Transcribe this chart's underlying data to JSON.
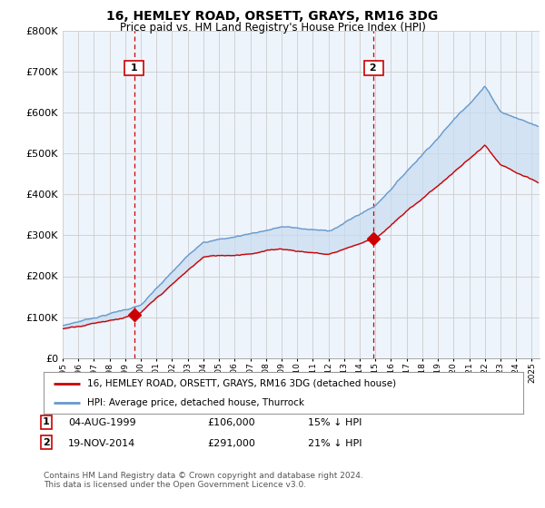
{
  "title": "16, HEMLEY ROAD, ORSETT, GRAYS, RM16 3DG",
  "subtitle": "Price paid vs. HM Land Registry's House Price Index (HPI)",
  "ylim": [
    0,
    800000
  ],
  "xlim_start": 1995.0,
  "xlim_end": 2025.5,
  "sale1_date": 1999.58,
  "sale1_price": 106000,
  "sale2_date": 2014.88,
  "sale2_price": 291000,
  "legend_line1": "16, HEMLEY ROAD, ORSETT, GRAYS, RM16 3DG (detached house)",
  "legend_line2": "HPI: Average price, detached house, Thurrock",
  "footer": "Contains HM Land Registry data © Crown copyright and database right 2024.\nThis data is licensed under the Open Government Licence v3.0.",
  "color_red": "#cc0000",
  "color_blue": "#6699cc",
  "color_fill": "#ddeeff",
  "color_vline": "#cc0000",
  "background_color": "#ffffff",
  "grid_color": "#cccccc"
}
